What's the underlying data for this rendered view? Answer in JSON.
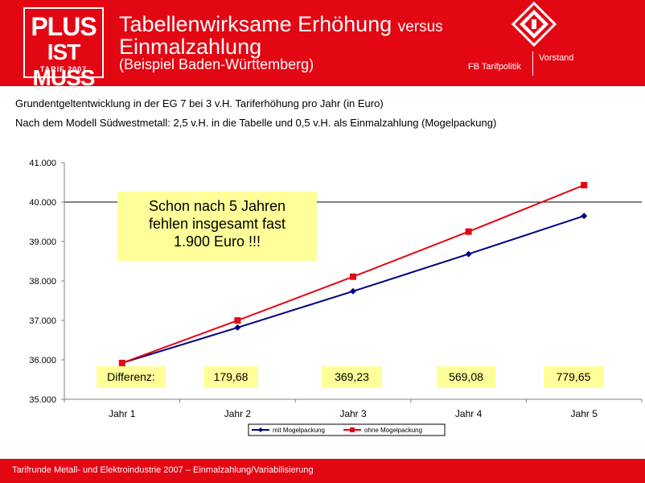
{
  "header": {
    "logo_line1": "PLUS",
    "logo_line2": "IST MUSS",
    "logo_line3": "TARIF 2007",
    "title_main": "Tabellenwirksame Erhöhung",
    "title_versus": "versus",
    "title_line2": "Einmalzahlung",
    "subtitle": "(Beispiel Baden-Württemberg)",
    "dept": "FB Tarifpolitik",
    "vorstand": "Vorstand",
    "brand_color": "#e30613"
  },
  "description": {
    "line1": "Grundentgeltentwicklung in der EG 7 bei 3 v.H. Tariferhöhung pro Jahr (in Euro)",
    "line2": "Nach dem Modell Südwestmetall: 2,5 v.H. in die Tabelle und 0,5 v.H. als Einmalzahlung (Mogelpackung)"
  },
  "callout": {
    "line1": "Schon nach 5 Jahren",
    "line2": "fehlen insgesamt fast",
    "line3": "1.900  Euro !!!"
  },
  "differences": {
    "label": "Differenz:",
    "values": [
      "179,68",
      "369,23",
      "569,08",
      "779,65"
    ]
  },
  "chart_data": {
    "type": "line",
    "categories": [
      "Jahr 1",
      "Jahr 2",
      "Jahr 3",
      "Jahr 4",
      "Jahr 5"
    ],
    "series": [
      {
        "name": "mit Mogelpackung",
        "color": "#000080",
        "marker": "diamond",
        "values": [
          35920,
          36818,
          37739,
          38682,
          39649
        ]
      },
      {
        "name": "ohne Mogelpackung",
        "color": "#e30613",
        "marker": "square",
        "values": [
          35920,
          36998,
          38108,
          39251,
          40429
        ]
      }
    ],
    "yticks": [
      "35.000",
      "36.000",
      "37.000",
      "38.000",
      "39.000",
      "40.000",
      "41.000"
    ],
    "ylim": [
      35000,
      41000
    ],
    "grid": "single line at 40.000",
    "legend": "bottom-center"
  },
  "footer": {
    "text": "Tarifrunde Metall- und Elektroindustrie 2007 – Einmalzahlung/Variabilisierung"
  }
}
